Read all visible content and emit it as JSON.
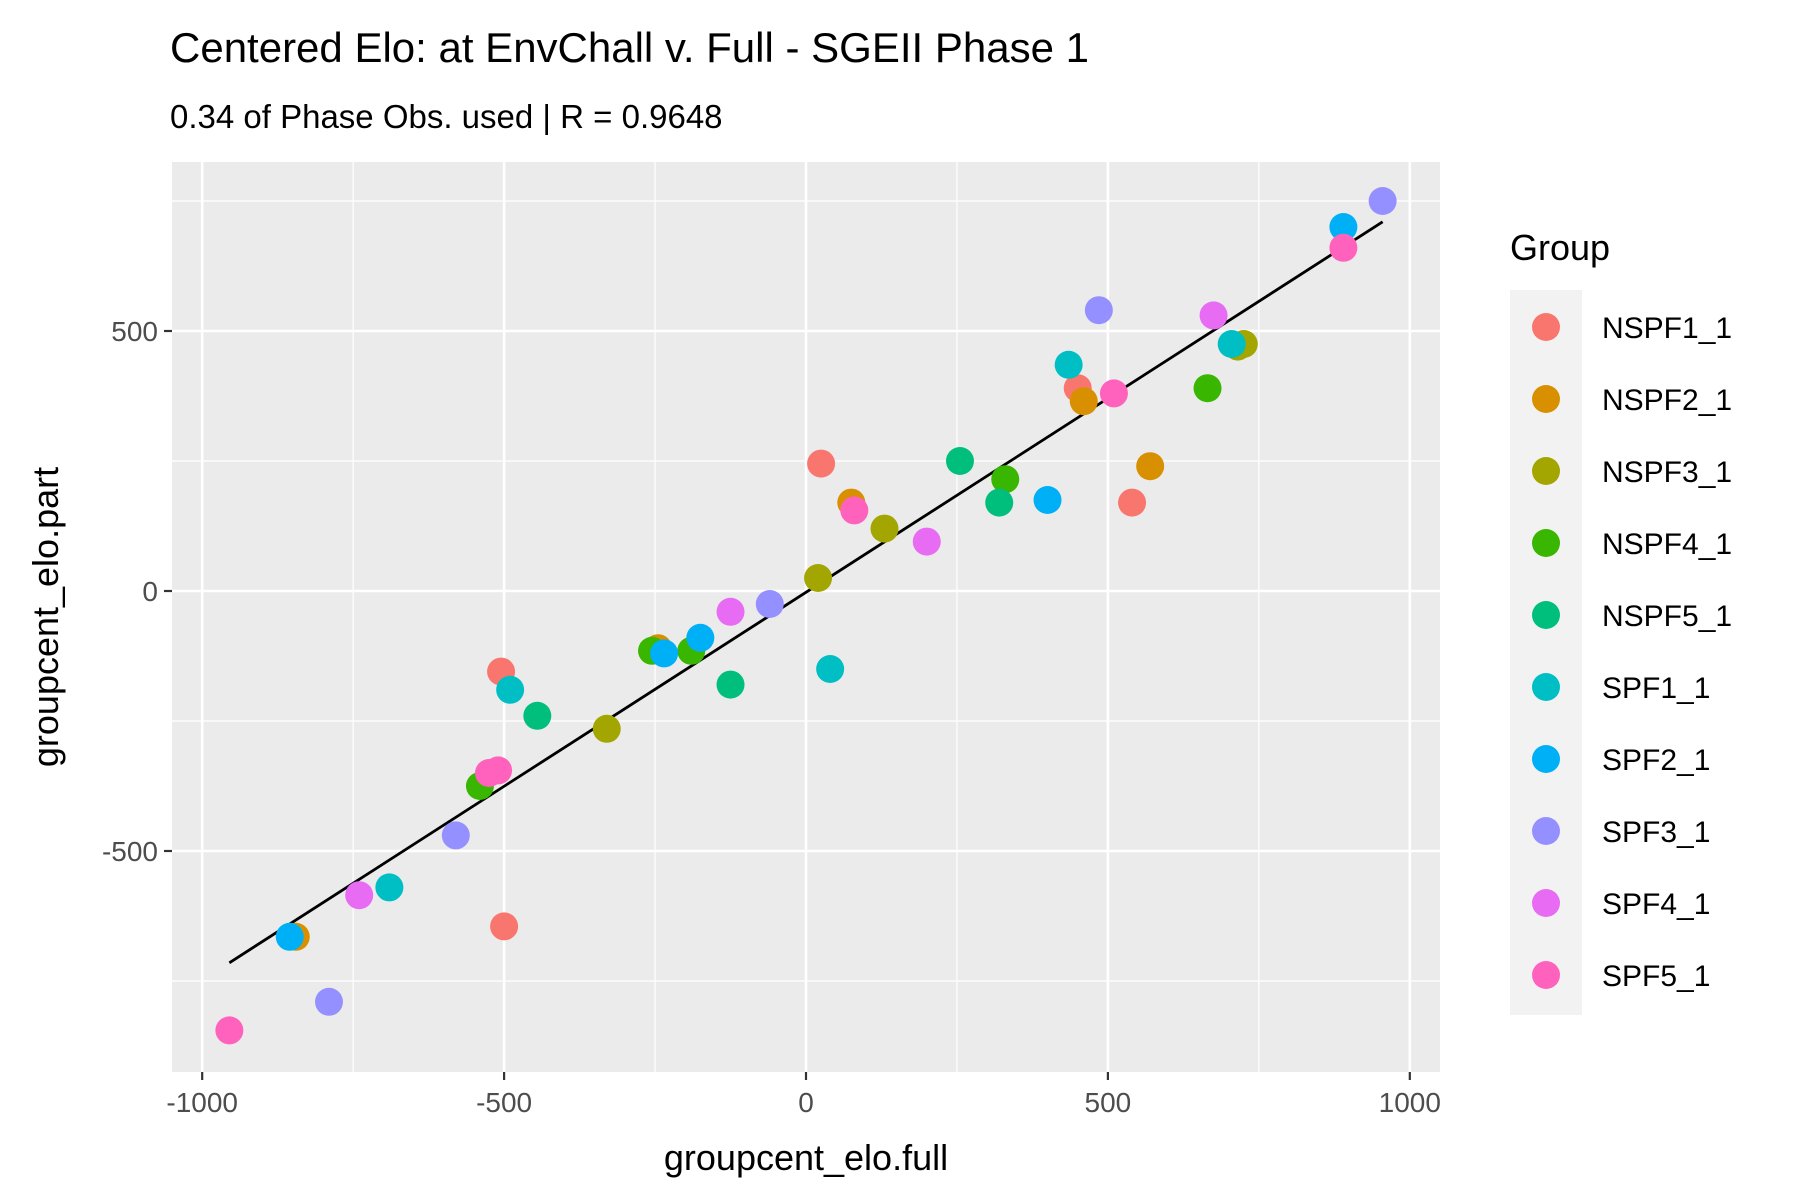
{
  "chart_data": {
    "type": "scatter",
    "title": "Centered Elo: at EnvChall v. Full - SGEII Phase 1",
    "subtitle": "0.34 of Phase Obs. used | R = 0.9648",
    "xlabel": "groupcent_elo.full",
    "ylabel": "groupcent_elo.part",
    "xlim": [
      -1050,
      1050
    ],
    "ylim": [
      -925,
      825
    ],
    "xticks": [
      -1000,
      -500,
      0,
      500,
      1000
    ],
    "yticks": [
      -500,
      0,
      500
    ],
    "grid": true,
    "legend_position": "right",
    "legend_title": "Group",
    "fit_line": {
      "x": [
        -955,
        955
      ],
      "y": [
        -715,
        710
      ]
    },
    "series": [
      {
        "name": "NSPF1_1",
        "color": "#F8766D",
        "points": [
          [
            -505,
            -155
          ],
          [
            -500,
            -645
          ],
          [
            25,
            245
          ],
          [
            450,
            390
          ],
          [
            540,
            170
          ]
        ]
      },
      {
        "name": "NSPF2_1",
        "color": "#D89000",
        "points": [
          [
            -845,
            -665
          ],
          [
            -245,
            -110
          ],
          [
            75,
            170
          ],
          [
            460,
            365
          ],
          [
            570,
            240
          ]
        ]
      },
      {
        "name": "NSPF3_1",
        "color": "#A3A500",
        "points": [
          [
            -330,
            -265
          ],
          [
            20,
            25
          ],
          [
            130,
            120
          ],
          [
            715,
            470
          ],
          [
            725,
            475
          ]
        ]
      },
      {
        "name": "NSPF4_1",
        "color": "#39B600",
        "points": [
          [
            -540,
            -375
          ],
          [
            -255,
            -115
          ],
          [
            -190,
            -115
          ],
          [
            330,
            215
          ],
          [
            665,
            390
          ]
        ]
      },
      {
        "name": "NSPF5_1",
        "color": "#00BF7D",
        "points": [
          [
            -445,
            -240
          ],
          [
            -125,
            -180
          ],
          [
            255,
            250
          ],
          [
            320,
            170
          ]
        ]
      },
      {
        "name": "SPF1_1",
        "color": "#00BFC4",
        "points": [
          [
            -690,
            -570
          ],
          [
            -490,
            -190
          ],
          [
            40,
            -150
          ],
          [
            435,
            435
          ],
          [
            705,
            475
          ]
        ]
      },
      {
        "name": "SPF2_1",
        "color": "#00B0F6",
        "points": [
          [
            -855,
            -665
          ],
          [
            -235,
            -120
          ],
          [
            -175,
            -90
          ],
          [
            400,
            175
          ],
          [
            890,
            700
          ]
        ]
      },
      {
        "name": "SPF3_1",
        "color": "#9590FF",
        "points": [
          [
            -790,
            -790
          ],
          [
            -580,
            -470
          ],
          [
            -60,
            -25
          ],
          [
            485,
            540
          ],
          [
            955,
            750
          ]
        ]
      },
      {
        "name": "SPF4_1",
        "color": "#E76BF3",
        "points": [
          [
            -740,
            -585
          ],
          [
            -125,
            -40
          ],
          [
            200,
            95
          ],
          [
            675,
            530
          ]
        ]
      },
      {
        "name": "SPF5_1",
        "color": "#FF62BC",
        "points": [
          [
            -955,
            -845
          ],
          [
            -525,
            -350
          ],
          [
            -510,
            -345
          ],
          [
            80,
            155
          ],
          [
            510,
            380
          ],
          [
            890,
            660
          ]
        ]
      }
    ]
  }
}
